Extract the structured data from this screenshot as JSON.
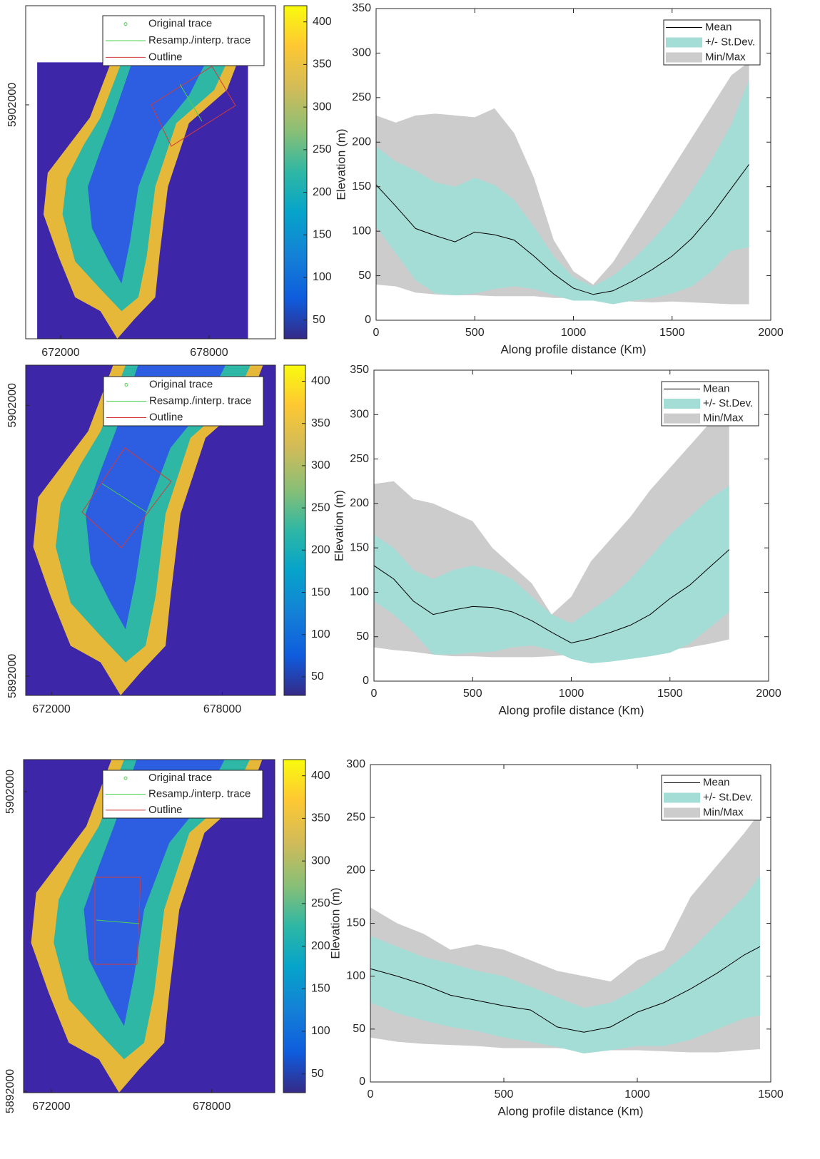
{
  "chart_data": [
    {
      "type": "map",
      "xlim": [
        670587,
        680683
      ],
      "ylim": [
        5892537,
        5906010
      ],
      "xticks": [
        672000,
        678000
      ],
      "yticks": [
        5902000
      ],
      "clim": [
        28,
        419
      ],
      "cticks": [
        50,
        100,
        150,
        200,
        250,
        300,
        350,
        400
      ],
      "legend": [
        {
          "label": "Original trace",
          "color": "#4cd14c",
          "marker": "circle"
        },
        {
          "label": "Resamp./interp. trace",
          "color": "#4cd14c",
          "marker": "line"
        },
        {
          "label": "Outline",
          "color": "#d23a3a",
          "marker": "line"
        }
      ]
    },
    {
      "type": "profile",
      "xlabel": "Along profile distance (Km)",
      "ylabel": "Elevation (m)",
      "xlim": [
        0,
        2000
      ],
      "ylim": [
        0,
        350
      ],
      "xticks": [
        0,
        500,
        1000,
        1500,
        2000
      ],
      "yticks": [
        0,
        50,
        100,
        150,
        200,
        250,
        300,
        350
      ],
      "x": [
        0,
        100,
        200,
        300,
        400,
        500,
        600,
        700,
        800,
        900,
        1000,
        1100,
        1200,
        1300,
        1400,
        1500,
        1600,
        1700,
        1800,
        1890
      ],
      "series": [
        {
          "name": "Mean",
          "color": "#000000",
          "values": [
            152,
            128,
            103,
            95,
            88,
            99,
            96,
            90,
            72,
            52,
            36,
            29,
            33,
            44,
            57,
            72,
            92,
            118,
            148,
            175
          ]
        },
        {
          "name": "+/- St.Dev.",
          "color": "#a4dcd6",
          "upper": [
            195,
            178,
            168,
            155,
            150,
            160,
            152,
            135,
            105,
            72,
            48,
            38,
            50,
            68,
            90,
            115,
            145,
            180,
            220,
            270
          ],
          "lower": [
            105,
            75,
            45,
            30,
            28,
            30,
            35,
            38,
            35,
            28,
            22,
            22,
            18,
            22,
            25,
            30,
            38,
            55,
            78,
            82
          ]
        },
        {
          "name": "Min/Max",
          "color": "#cccccc",
          "upper": [
            230,
            222,
            230,
            232,
            230,
            228,
            238,
            210,
            160,
            90,
            55,
            40,
            65,
            100,
            135,
            170,
            205,
            240,
            275,
            290
          ],
          "lower": [
            40,
            38,
            31,
            29,
            28,
            28,
            27,
            27,
            27,
            25,
            25,
            25,
            22,
            21,
            20,
            21,
            20,
            19,
            18,
            18
          ]
        }
      ]
    },
    {
      "type": "map",
      "xlim": [
        671096,
        679866
      ],
      "ylim": [
        5891286,
        5903482
      ],
      "xticks": [
        672000,
        678000
      ],
      "yticks": [
        5892000,
        5902000
      ],
      "clim": [
        28,
        419
      ],
      "cticks": [
        50,
        100,
        150,
        200,
        250,
        300,
        350,
        400
      ],
      "legend": [
        {
          "label": "Original trace",
          "color": "#4cd14c",
          "marker": "circle"
        },
        {
          "label": "Resamp./interp. trace",
          "color": "#4cd14c",
          "marker": "line"
        },
        {
          "label": "Outline",
          "color": "#d23a3a",
          "marker": "line"
        }
      ]
    },
    {
      "type": "profile",
      "xlabel": "Along profile distance (Km)",
      "ylabel": "Elevation (m)",
      "xlim": [
        0,
        2000
      ],
      "ylim": [
        0,
        350
      ],
      "xticks": [
        0,
        500,
        1000,
        1500,
        2000
      ],
      "yticks": [
        0,
        50,
        100,
        150,
        200,
        250,
        300,
        350
      ],
      "x": [
        0,
        100,
        200,
        300,
        400,
        500,
        600,
        700,
        800,
        900,
        1000,
        1100,
        1200,
        1300,
        1400,
        1500,
        1600,
        1700,
        1800
      ],
      "series": [
        {
          "name": "Mean",
          "color": "#000000",
          "values": [
            130,
            115,
            90,
            75,
            80,
            84,
            83,
            78,
            68,
            55,
            43,
            48,
            55,
            63,
            75,
            93,
            108,
            128,
            148
          ]
        },
        {
          "name": "+/- St.Dev.",
          "color": "#a4dcd6",
          "upper": [
            165,
            150,
            125,
            115,
            125,
            130,
            125,
            115,
            95,
            75,
            65,
            80,
            95,
            115,
            140,
            165,
            185,
            205,
            220
          ],
          "lower": [
            90,
            75,
            55,
            30,
            30,
            32,
            33,
            38,
            40,
            35,
            25,
            20,
            22,
            25,
            28,
            32,
            42,
            60,
            78
          ]
        },
        {
          "name": "Min/Max",
          "color": "#cccccc",
          "upper": [
            222,
            225,
            205,
            200,
            190,
            180,
            150,
            130,
            110,
            75,
            95,
            135,
            160,
            185,
            215,
            240,
            265,
            290,
            300
          ],
          "lower": [
            38,
            35,
            33,
            30,
            28,
            28,
            27,
            27,
            27,
            28,
            30,
            30,
            32,
            33,
            34,
            35,
            38,
            42,
            47
          ]
        }
      ]
    },
    {
      "type": "map",
      "xlim": [
        670960,
        680357
      ],
      "ylim": [
        5891952,
        5903071
      ],
      "xticks": [
        672000,
        678000
      ],
      "yticks": [
        5892000,
        5902000
      ],
      "clim": [
        28,
        419
      ],
      "cticks": [
        50,
        100,
        150,
        200,
        250,
        300,
        350,
        400
      ],
      "legend": [
        {
          "label": "Original trace",
          "color": "#4cd14c",
          "marker": "circle"
        },
        {
          "label": "Resamp./interp. trace",
          "color": "#4cd14c",
          "marker": "line"
        },
        {
          "label": "Outline",
          "color": "#d23a3a",
          "marker": "line"
        }
      ]
    },
    {
      "type": "profile",
      "xlabel": "Along profile distance (Km)",
      "ylabel": "Elevation (m)",
      "xlim": [
        0,
        1500
      ],
      "ylim": [
        0,
        300
      ],
      "xticks": [
        0,
        500,
        1000,
        1500
      ],
      "yticks": [
        0,
        50,
        100,
        150,
        200,
        250,
        300
      ],
      "x": [
        0,
        100,
        200,
        300,
        400,
        500,
        600,
        700,
        800,
        900,
        1000,
        1100,
        1200,
        1300,
        1400,
        1460
      ],
      "series": [
        {
          "name": "Mean",
          "color": "#000000",
          "values": [
            107,
            100,
            92,
            82,
            77,
            72,
            68,
            52,
            47,
            52,
            66,
            75,
            88,
            103,
            120,
            128
          ]
        },
        {
          "name": "+/- St.Dev.",
          "color": "#a4dcd6",
          "upper": [
            138,
            128,
            118,
            112,
            105,
            100,
            90,
            80,
            70,
            75,
            88,
            105,
            125,
            150,
            175,
            195
          ],
          "lower": [
            75,
            65,
            58,
            52,
            48,
            42,
            38,
            33,
            27,
            30,
            34,
            34,
            40,
            50,
            60,
            63
          ]
        },
        {
          "name": "Min/Max",
          "color": "#cccccc",
          "upper": [
            165,
            150,
            140,
            125,
            130,
            125,
            115,
            105,
            100,
            95,
            115,
            125,
            175,
            205,
            235,
            255
          ],
          "lower": [
            42,
            38,
            36,
            35,
            34,
            32,
            32,
            32,
            30,
            30,
            30,
            29,
            28,
            28,
            30,
            31
          ]
        }
      ]
    }
  ]
}
